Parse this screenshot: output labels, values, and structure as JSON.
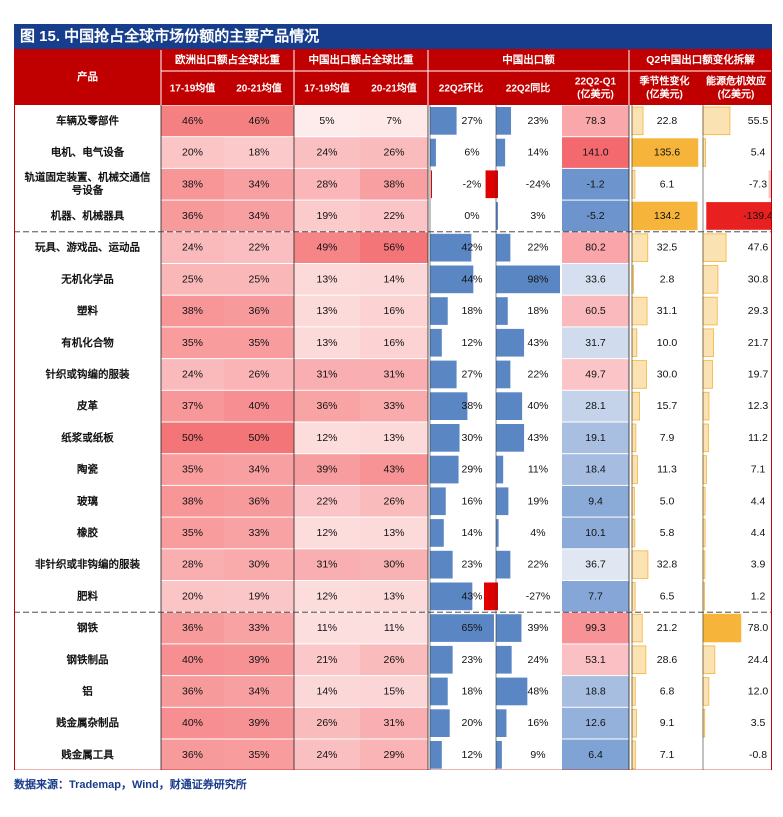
{
  "title": "图 15. 中国抢占全球市场份额的主要产品情况",
  "source": "数据来源：Trademap，Wind，财通证券研究所",
  "header": {
    "product": "产品",
    "groups": [
      "欧洲出口额占全球比重",
      "中国出口额占全球比重",
      "中国出口额",
      "Q2中国出口额变化拆解"
    ],
    "cols": [
      [
        "17-19均值"
      ],
      [
        "20-21均值"
      ],
      [
        "17-19均值"
      ],
      [
        "20-21均值"
      ],
      [
        "22Q2环比"
      ],
      [
        "22Q2同比"
      ],
      [
        "22Q2-Q1",
        "(亿美元)"
      ],
      [
        "季节性变化",
        "(亿美元)"
      ],
      [
        "能源危机效应",
        "(亿美元)"
      ]
    ]
  },
  "colors": {
    "header_bg": "#c00000",
    "title_bg": "#163e8c",
    "bar_pos": "#5b86c4",
    "bar_neg": "#e00000",
    "heat_high": "#f4777a",
    "heat_cold": "#6d93cc",
    "gold": "#f6b43a"
  },
  "chart_data": {
    "type": "table",
    "columns": [
      "17-19均值",
      "20-21均值",
      "17-19均值",
      "20-21均值",
      "22Q2环比",
      "22Q2同比",
      "22Q2-Q1",
      "季节性变化",
      "能源危机效应"
    ],
    "rows": [
      {
        "label": "车辆及零部件",
        "cells": [
          "46%",
          "46%",
          "5%",
          "7%",
          "27%",
          "23%",
          "78.3",
          "22.8",
          "55.5"
        ]
      },
      {
        "label": "电机、电气设备",
        "cells": [
          "20%",
          "18%",
          "24%",
          "26%",
          "6%",
          "14%",
          "141.0",
          "135.6",
          "5.4"
        ]
      },
      {
        "label": "轨道固定装置、机械交通信号设备",
        "cells": [
          "38%",
          "34%",
          "28%",
          "38%",
          "-2%",
          "-24%",
          "-1.2",
          "6.1",
          "-7.3"
        ]
      },
      {
        "label": "机器、机械器具",
        "cells": [
          "36%",
          "34%",
          "19%",
          "22%",
          "0%",
          "3%",
          "-5.2",
          "134.2",
          "-139.4"
        ]
      },
      {
        "label": "玩具、游戏品、运动品",
        "cells": [
          "24%",
          "22%",
          "49%",
          "56%",
          "42%",
          "22%",
          "80.2",
          "32.5",
          "47.6"
        ]
      },
      {
        "label": "无机化学品",
        "cells": [
          "25%",
          "25%",
          "13%",
          "14%",
          "44%",
          "98%",
          "33.6",
          "2.8",
          "30.8"
        ]
      },
      {
        "label": "塑料",
        "cells": [
          "38%",
          "36%",
          "13%",
          "16%",
          "18%",
          "18%",
          "60.5",
          "31.1",
          "29.3"
        ]
      },
      {
        "label": "有机化合物",
        "cells": [
          "35%",
          "35%",
          "13%",
          "16%",
          "12%",
          "43%",
          "31.7",
          "10.0",
          "21.7"
        ]
      },
      {
        "label": "针织或钩编的服装",
        "cells": [
          "24%",
          "26%",
          "31%",
          "31%",
          "27%",
          "22%",
          "49.7",
          "30.0",
          "19.7"
        ]
      },
      {
        "label": "皮革",
        "cells": [
          "37%",
          "40%",
          "36%",
          "33%",
          "38%",
          "40%",
          "28.1",
          "15.7",
          "12.3"
        ]
      },
      {
        "label": "纸浆或纸板",
        "cells": [
          "50%",
          "50%",
          "12%",
          "13%",
          "30%",
          "43%",
          "19.1",
          "7.9",
          "11.2"
        ]
      },
      {
        "label": "陶瓷",
        "cells": [
          "35%",
          "34%",
          "39%",
          "43%",
          "29%",
          "11%",
          "18.4",
          "11.3",
          "7.1"
        ]
      },
      {
        "label": "玻璃",
        "cells": [
          "38%",
          "36%",
          "22%",
          "26%",
          "16%",
          "19%",
          "9.4",
          "5.0",
          "4.4"
        ]
      },
      {
        "label": "橡胶",
        "cells": [
          "35%",
          "33%",
          "12%",
          "13%",
          "14%",
          "4%",
          "10.1",
          "5.8",
          "4.4"
        ]
      },
      {
        "label": "非针织或非钩编的服装",
        "cells": [
          "28%",
          "30%",
          "31%",
          "30%",
          "23%",
          "22%",
          "36.7",
          "32.8",
          "3.9"
        ]
      },
      {
        "label": "肥料",
        "cells": [
          "20%",
          "19%",
          "12%",
          "13%",
          "43%",
          "-27%",
          "7.7",
          "6.5",
          "1.2"
        ]
      },
      {
        "label": "钢铁",
        "cells": [
          "36%",
          "33%",
          "11%",
          "11%",
          "65%",
          "39%",
          "99.3",
          "21.2",
          "78.0"
        ]
      },
      {
        "label": "钢铁制品",
        "cells": [
          "40%",
          "39%",
          "21%",
          "26%",
          "23%",
          "24%",
          "53.1",
          "28.6",
          "24.4"
        ]
      },
      {
        "label": "铝",
        "cells": [
          "36%",
          "34%",
          "14%",
          "15%",
          "18%",
          "48%",
          "18.8",
          "6.8",
          "12.0"
        ]
      },
      {
        "label": "贱金属杂制品",
        "cells": [
          "40%",
          "39%",
          "26%",
          "31%",
          "20%",
          "16%",
          "12.6",
          "9.1",
          "3.5"
        ]
      },
      {
        "label": "贱金属工具",
        "cells": [
          "36%",
          "35%",
          "24%",
          "29%",
          "12%",
          "9%",
          "6.4",
          "7.1",
          "-0.8"
        ]
      }
    ]
  }
}
